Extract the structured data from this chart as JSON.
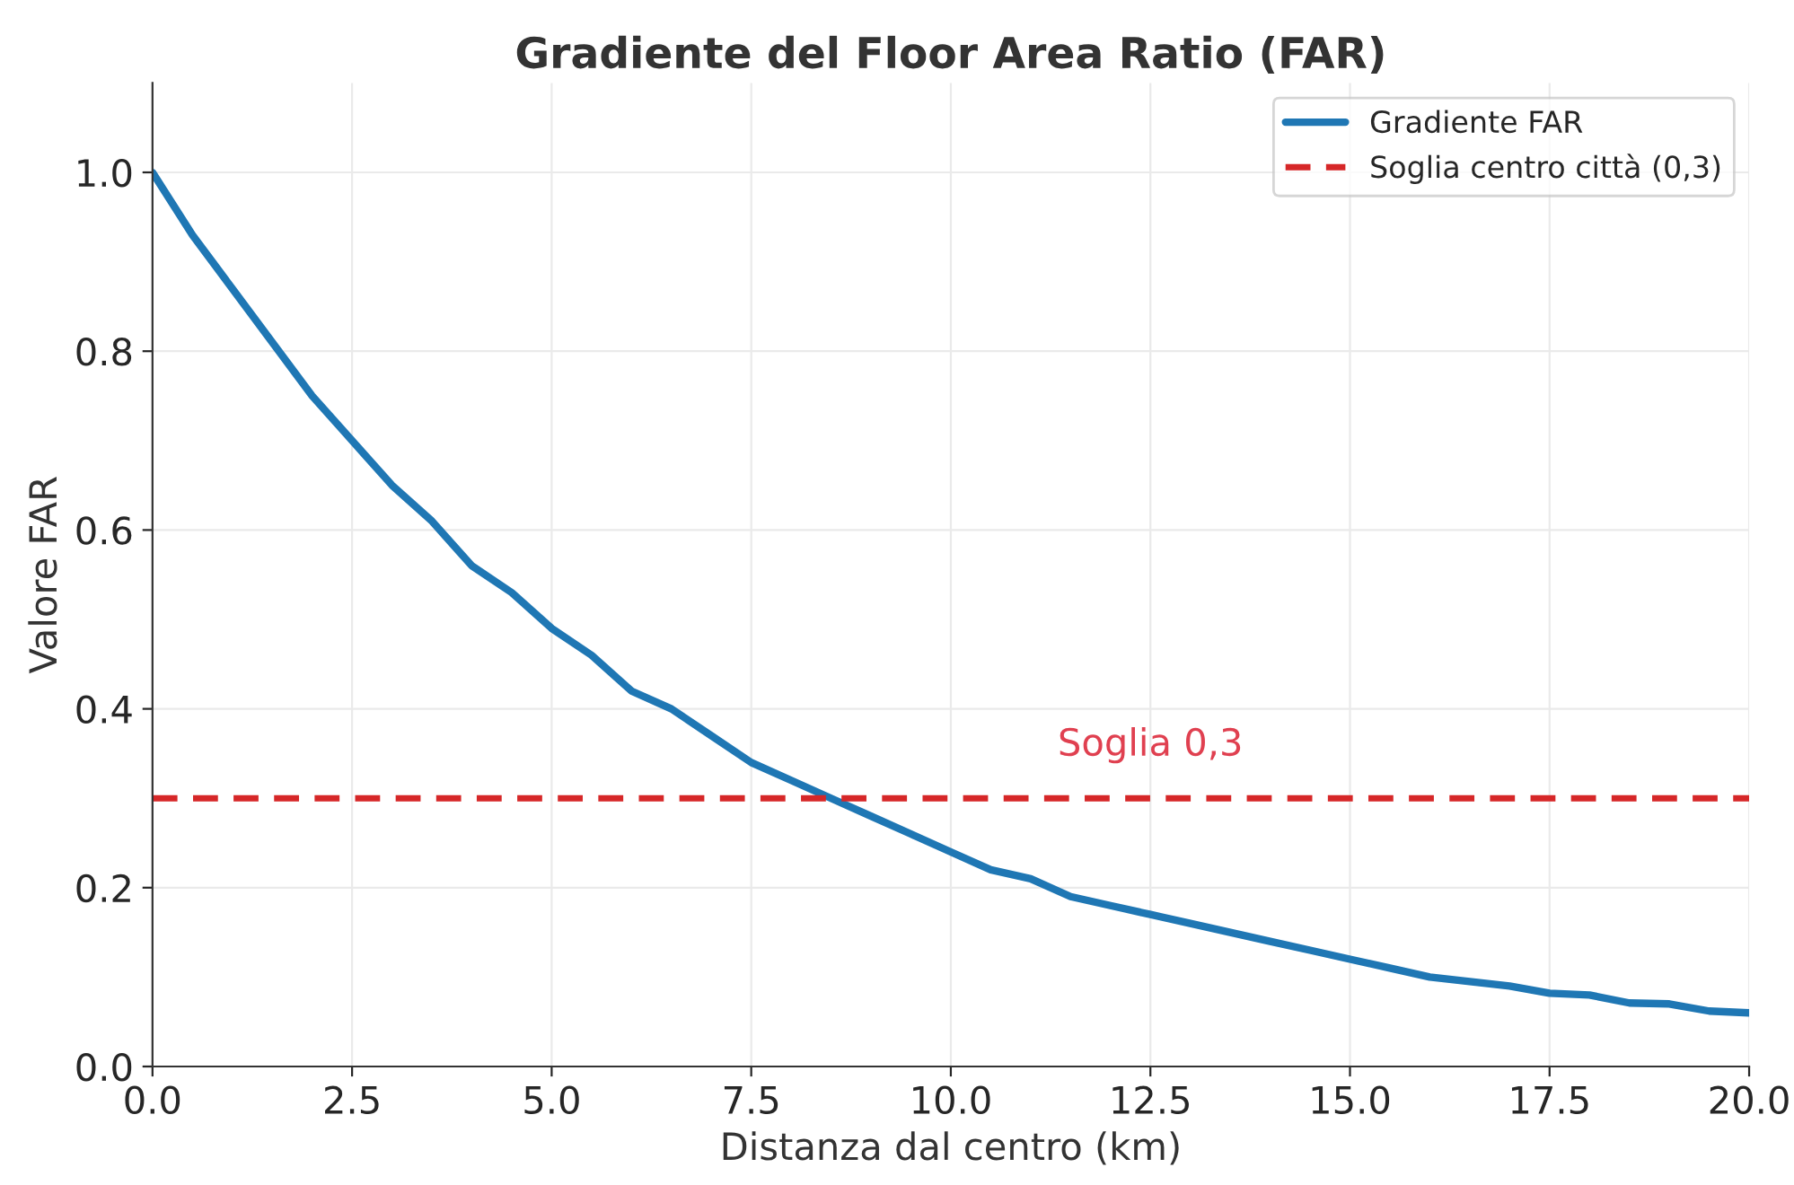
{
  "chart_data": {
    "type": "line",
    "title": "Gradiente del Floor Area Ratio (FAR)",
    "xlabel": "Distanza dal centro (km)",
    "ylabel": "Valore FAR",
    "x": [
      0,
      0.5,
      1,
      1.5,
      2,
      2.5,
      3,
      3.5,
      4,
      4.5,
      5,
      5.5,
      6,
      6.5,
      7,
      7.5,
      8,
      8.5,
      9,
      9.5,
      10,
      10.5,
      11,
      11.5,
      12,
      12.5,
      13,
      13.5,
      14,
      14.5,
      15,
      15.5,
      16,
      16.5,
      17,
      17.5,
      18,
      18.5,
      19,
      19.5,
      20
    ],
    "series": [
      {
        "name": "Gradiente FAR",
        "color": "#1f77b4",
        "values": [
          1.0,
          0.93,
          0.87,
          0.81,
          0.75,
          0.7,
          0.65,
          0.61,
          0.56,
          0.53,
          0.49,
          0.46,
          0.42,
          0.4,
          0.37,
          0.34,
          0.32,
          0.3,
          0.28,
          0.26,
          0.24,
          0.22,
          0.21,
          0.19,
          0.18,
          0.17,
          0.16,
          0.15,
          0.14,
          0.13,
          0.12,
          0.11,
          0.1,
          0.095,
          0.09,
          0.082,
          0.08,
          0.071,
          0.07,
          0.062,
          0.06
        ]
      }
    ],
    "ref_lines": [
      {
        "axis": "y",
        "value": 0.3,
        "label": "Soglia centro città (0,3)",
        "color": "#d62728",
        "line_style": "dashed"
      }
    ],
    "annotations": [
      {
        "text": "Soglia 0,3",
        "x": 12.5,
        "y": 0.3
      }
    ],
    "xlim": [
      0,
      20
    ],
    "xticks": [
      {
        "value": 0,
        "label": "0.0"
      },
      2.5,
      {
        "value": 5,
        "label": "5.0"
      },
      7.5,
      {
        "value": 10,
        "label": "10.0"
      },
      12.5,
      {
        "value": 15,
        "label": "15.0"
      },
      17.5,
      {
        "value": 20,
        "label": "20.0"
      }
    ],
    "ylim": [
      0,
      1.1
    ],
    "yticks": [
      {
        "value": 0,
        "label": "0.0"
      },
      0.2,
      0.4,
      0.6,
      0.8,
      {
        "value": 1,
        "label": "1.0"
      }
    ],
    "grid": true,
    "legend": "top right",
    "marker": "none",
    "line_style": "solid"
  }
}
